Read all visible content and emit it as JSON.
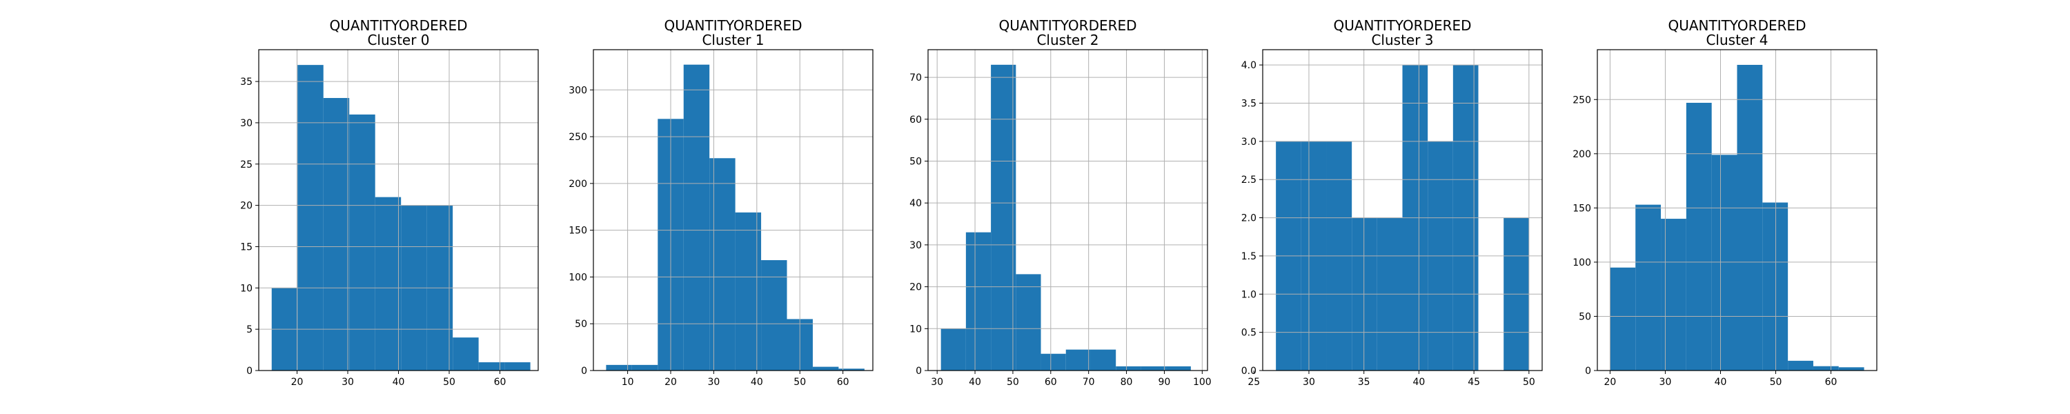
{
  "chart_data": [
    {
      "type": "bar",
      "title": "QUANTITYORDERED",
      "subtitle": "Cluster 0",
      "xlabel": "",
      "ylabel": "",
      "grid": true,
      "xlim": [
        12.45,
        67.55
      ],
      "ylim": [
        0,
        38.85
      ],
      "xticks": [
        20,
        30,
        40,
        50,
        60
      ],
      "yticks": [
        0,
        5,
        10,
        15,
        20,
        25,
        30,
        35
      ],
      "color": "#1f77b4",
      "bins": [
        [
          15,
          20.1
        ],
        [
          20.1,
          25.2
        ],
        [
          25.2,
          30.3
        ],
        [
          30.3,
          35.4
        ],
        [
          35.4,
          40.5
        ],
        [
          40.5,
          45.6
        ],
        [
          45.6,
          50.7
        ],
        [
          50.7,
          55.8
        ],
        [
          55.8,
          60.9
        ],
        [
          60.9,
          66
        ]
      ],
      "values": [
        10,
        37,
        33,
        31,
        21,
        20,
        20,
        4,
        1,
        1
      ]
    },
    {
      "type": "bar",
      "title": "QUANTITYORDERED",
      "subtitle": "Cluster 1",
      "xlabel": "",
      "ylabel": "",
      "grid": true,
      "xlim": [
        2.05,
        66.95
      ],
      "ylim": [
        0,
        343
      ],
      "xticks": [
        10,
        20,
        30,
        40,
        50,
        60
      ],
      "yticks": [
        0,
        50,
        100,
        150,
        200,
        250,
        300
      ],
      "color": "#1f77b4",
      "bins": [
        [
          5,
          11
        ],
        [
          11,
          17
        ],
        [
          17,
          23
        ],
        [
          23,
          29
        ],
        [
          29,
          35
        ],
        [
          35,
          41
        ],
        [
          41,
          47
        ],
        [
          47,
          53
        ],
        [
          53,
          59
        ],
        [
          59,
          65
        ]
      ],
      "values": [
        6,
        6,
        269,
        327,
        227,
        169,
        118,
        55,
        4,
        2
      ]
    },
    {
      "type": "bar",
      "title": "QUANTITYORDERED",
      "subtitle": "Cluster 2",
      "xlabel": "",
      "ylabel": "",
      "grid": true,
      "xlim": [
        27.6,
        101.4
      ],
      "ylim": [
        0,
        76.6
      ],
      "xticks": [
        30,
        40,
        50,
        60,
        70,
        80,
        90,
        100
      ],
      "yticks": [
        0,
        10,
        20,
        30,
        40,
        50,
        60,
        70
      ],
      "color": "#1f77b4",
      "bins": [
        [
          31,
          37.6
        ],
        [
          37.6,
          44.2
        ],
        [
          44.2,
          50.8
        ],
        [
          50.8,
          57.4
        ],
        [
          57.4,
          64
        ],
        [
          64,
          70.6
        ],
        [
          70.6,
          77.2
        ],
        [
          77.2,
          83.8
        ],
        [
          83.8,
          90.4
        ],
        [
          90.4,
          97
        ]
      ],
      "values": [
        10,
        33,
        73,
        23,
        4,
        5,
        5,
        1,
        1,
        1
      ]
    },
    {
      "type": "bar",
      "title": "QUANTITYORDERED",
      "subtitle": "Cluster 3",
      "xlabel": "",
      "ylabel": "",
      "grid": true,
      "xlim": [
        25.8,
        51.2
      ],
      "ylim": [
        0,
        4.2
      ],
      "xticks": [
        25,
        30,
        35,
        40,
        45,
        50
      ],
      "yticks": [
        0.0,
        0.5,
        1.0,
        1.5,
        2.0,
        2.5,
        3.0,
        3.5,
        4.0
      ],
      "ytick_decimals": 1,
      "color": "#1f77b4",
      "bins": [
        [
          27,
          29.3
        ],
        [
          29.3,
          31.6
        ],
        [
          31.6,
          33.9
        ],
        [
          33.9,
          36.2
        ],
        [
          36.2,
          38.5
        ],
        [
          38.5,
          40.8
        ],
        [
          40.8,
          43.1
        ],
        [
          43.1,
          45.4
        ],
        [
          45.4,
          47.7
        ],
        [
          47.7,
          50
        ]
      ],
      "values": [
        3,
        3,
        3,
        2,
        2,
        4,
        3,
        4,
        0,
        2
      ]
    },
    {
      "type": "bar",
      "title": "QUANTITYORDERED",
      "subtitle": "Cluster 4",
      "xlabel": "",
      "ylabel": "",
      "grid": true,
      "xlim": [
        17.7,
        68.3
      ],
      "ylim": [
        0,
        296
      ],
      "xticks": [
        20,
        30,
        40,
        50,
        60
      ],
      "yticks": [
        0,
        50,
        100,
        150,
        200,
        250
      ],
      "color": "#1f77b4",
      "bins": [
        [
          20,
          24.6
        ],
        [
          24.6,
          29.2
        ],
        [
          29.2,
          33.8
        ],
        [
          33.8,
          38.4
        ],
        [
          38.4,
          43
        ],
        [
          43,
          47.6
        ],
        [
          47.6,
          52.2
        ],
        [
          52.2,
          56.8
        ],
        [
          56.8,
          61.4
        ],
        [
          61.4,
          66
        ]
      ],
      "values": [
        95,
        153,
        140,
        247,
        199,
        282,
        155,
        9,
        4,
        3
      ]
    }
  ]
}
